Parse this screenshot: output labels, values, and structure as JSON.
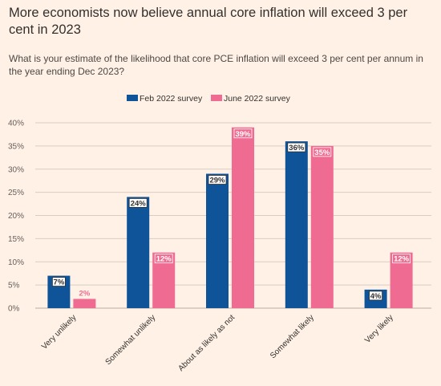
{
  "title": "More economists now believe annual core inflation will exceed 3 per cent in 2023",
  "subtitle": "What is your estimate of the likelihood that core PCE inflation will exceed 3 per cent per annum in the year ending Dec 2023?",
  "colors": {
    "feb": "#0f5499",
    "june": "#f06b91",
    "background": "#fff1e5",
    "grid": "#d9cdc3"
  },
  "chart_data": {
    "type": "bar",
    "categories": [
      "Very unlikely",
      "Somewhat unlikely",
      "About as likely as not",
      "Somewhat likely",
      "Very likely"
    ],
    "series": [
      {
        "name": "Feb 2022 survey",
        "values": [
          7,
          24,
          29,
          36,
          4
        ],
        "labels": [
          "7%",
          "24%",
          "29%",
          "36%",
          "4%"
        ]
      },
      {
        "name": "June 2022 survey",
        "values": [
          2,
          12,
          39,
          35,
          12
        ],
        "labels": [
          "2%",
          "12%",
          "39%",
          "35%",
          "12%"
        ]
      }
    ],
    "ylim": [
      0,
      40
    ],
    "yticks": [
      0,
      5,
      10,
      15,
      20,
      25,
      30,
      35,
      40
    ],
    "ytick_labels": [
      "0%",
      "5%",
      "10%",
      "15%",
      "20%",
      "25%",
      "30%",
      "35%",
      "40%"
    ],
    "legend_position": "top-center",
    "grid": true
  }
}
